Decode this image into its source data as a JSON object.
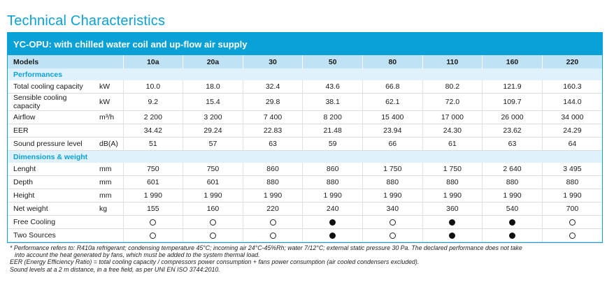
{
  "title": "Technical Characteristics",
  "banner": "YC-OPU: with chilled water coil and up-flow air supply",
  "header": {
    "models_label": "Models",
    "models": [
      "10a",
      "20a",
      "30",
      "50",
      "80",
      "110",
      "160",
      "220"
    ]
  },
  "sections": [
    {
      "title": "Performances",
      "rows": [
        {
          "label": "Total cooling capacity",
          "unit": "kW",
          "values": [
            "10.0",
            "18.0",
            "32.4",
            "43.6",
            "66.8",
            "80.2",
            "121.9",
            "160.3"
          ]
        },
        {
          "label": "Sensible cooling capacity",
          "unit": "kW",
          "values": [
            "9.2",
            "15.4",
            "29.8",
            "38.1",
            "62.1",
            "72.0",
            "109.7",
            "144.0"
          ]
        },
        {
          "label": "Airflow",
          "unit": "m³/h",
          "values": [
            "2 200",
            "3 200",
            "7 400",
            "8 200",
            "15 400",
            "17 000",
            "26 000",
            "34 000"
          ]
        },
        {
          "label": "EER",
          "unit": "",
          "values": [
            "34.42",
            "29.24",
            "22.83",
            "21.48",
            "23.94",
            "24.30",
            "23.62",
            "24.29"
          ]
        },
        {
          "label": "Sound pressure level",
          "unit": "dB(A)",
          "values": [
            "51",
            "57",
            "63",
            "59",
            "66",
            "61",
            "63",
            "64"
          ]
        }
      ]
    },
    {
      "title": "Dimensions & weight",
      "rows": [
        {
          "label": "Lenght",
          "unit": "mm",
          "values": [
            "750",
            "750",
            "860",
            "860",
            "1 750",
            "1 750",
            "2 640",
            "3 495"
          ]
        },
        {
          "label": "Depth",
          "unit": "mm",
          "values": [
            "601",
            "601",
            "880",
            "880",
            "880",
            "880",
            "880",
            "880"
          ]
        },
        {
          "label": "Height",
          "unit": "mm",
          "values": [
            "1 990",
            "1 990",
            "1 990",
            "1 990",
            "1 990",
            "1 990",
            "1 990",
            "1 990"
          ]
        },
        {
          "label": "Net weight",
          "unit": "kg",
          "values": [
            "155",
            "160",
            "220",
            "240",
            "340",
            "360",
            "540",
            "700"
          ]
        },
        {
          "label": "Free Cooling",
          "unit": "",
          "symbols": [
            "open",
            "open",
            "open",
            "filled",
            "open",
            "filled",
            "filled",
            "open"
          ]
        },
        {
          "label": "Two Sources",
          "unit": "",
          "symbols": [
            "open",
            "open",
            "open",
            "filled",
            "open",
            "filled",
            "filled",
            "open"
          ]
        }
      ]
    }
  ],
  "notes": {
    "line1": "* Performance refers to: R410a refrigerant; condensing temperature 45°C; incoming air 24°C-45%Rh; water 7/12°C; external static pressure 30 Pa. The declared performance does not take",
    "line2": "into account the heat generated by fans, which must be added to the system thermal load.",
    "line3": "EER (Energy Efficiency Ratio) = total cooling capacity / compressors power consumption + fans power consumption (air cooled condensers excluded).",
    "line4": "Sound levels at a 2 m distance, in a free field, as per UNI EN ISO 3744:2010."
  }
}
